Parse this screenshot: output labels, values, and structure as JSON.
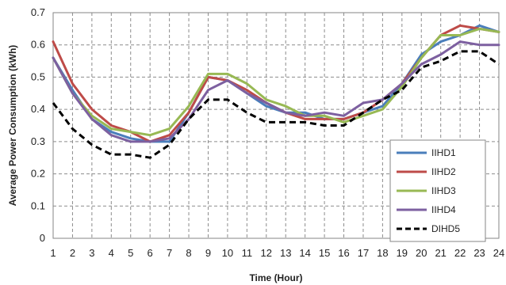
{
  "chart_data": {
    "type": "line",
    "title": "",
    "xlabel": "Time (Hour)",
    "ylabel": "Average Power Consumption (kWh)",
    "categories": [
      1,
      2,
      3,
      4,
      5,
      6,
      7,
      8,
      9,
      10,
      11,
      12,
      13,
      14,
      15,
      16,
      17,
      18,
      19,
      20,
      21,
      22,
      23,
      24
    ],
    "ylim": [
      0,
      0.7
    ],
    "yticks": [
      0,
      0.1,
      0.2,
      0.3,
      0.4,
      0.5,
      0.6,
      0.7
    ],
    "ytick_labels": [
      "0",
      "0.1",
      "0.2",
      "0.3",
      "0.4",
      "0.5",
      "0.6",
      "0.7"
    ],
    "grid": true,
    "grid_style": "dashed",
    "legend_position": "lower-right",
    "series": [
      {
        "name": "IIHD1",
        "color": "#4A7EBB",
        "dash": "solid",
        "values": [
          0.56,
          0.46,
          0.37,
          0.33,
          0.31,
          0.3,
          0.3,
          0.39,
          0.5,
          0.49,
          0.45,
          0.41,
          0.39,
          0.39,
          0.37,
          0.37,
          0.39,
          0.41,
          0.48,
          0.57,
          0.61,
          0.63,
          0.66,
          0.64
        ]
      },
      {
        "name": "IIHD2",
        "color": "#BE4B48",
        "dash": "solid",
        "values": [
          0.61,
          0.48,
          0.4,
          0.35,
          0.33,
          0.3,
          0.32,
          0.39,
          0.5,
          0.49,
          0.46,
          0.42,
          0.39,
          0.37,
          0.37,
          0.37,
          0.39,
          0.43,
          0.48,
          0.56,
          0.63,
          0.66,
          0.65,
          0.64
        ]
      },
      {
        "name": "IIHD3",
        "color": "#98B954",
        "dash": "solid",
        "values": [
          0.56,
          0.45,
          0.38,
          0.34,
          0.33,
          0.32,
          0.34,
          0.41,
          0.51,
          0.51,
          0.48,
          0.43,
          0.41,
          0.38,
          0.38,
          0.36,
          0.38,
          0.4,
          0.47,
          0.56,
          0.63,
          0.63,
          0.65,
          0.64
        ]
      },
      {
        "name": "IIHD4",
        "color": "#7D60A0",
        "dash": "solid",
        "values": [
          0.56,
          0.45,
          0.37,
          0.32,
          0.3,
          0.3,
          0.31,
          0.37,
          0.46,
          0.49,
          0.45,
          0.42,
          0.39,
          0.38,
          0.39,
          0.38,
          0.42,
          0.43,
          0.48,
          0.54,
          0.57,
          0.61,
          0.6,
          0.6
        ]
      },
      {
        "name": "DIHD5",
        "color": "#000000",
        "dash": "dashed",
        "values": [
          0.42,
          0.34,
          0.29,
          0.26,
          0.26,
          0.25,
          0.29,
          0.37,
          0.43,
          0.43,
          0.39,
          0.36,
          0.36,
          0.36,
          0.35,
          0.35,
          0.39,
          0.43,
          0.46,
          0.53,
          0.55,
          0.58,
          0.58,
          0.54
        ]
      }
    ]
  }
}
